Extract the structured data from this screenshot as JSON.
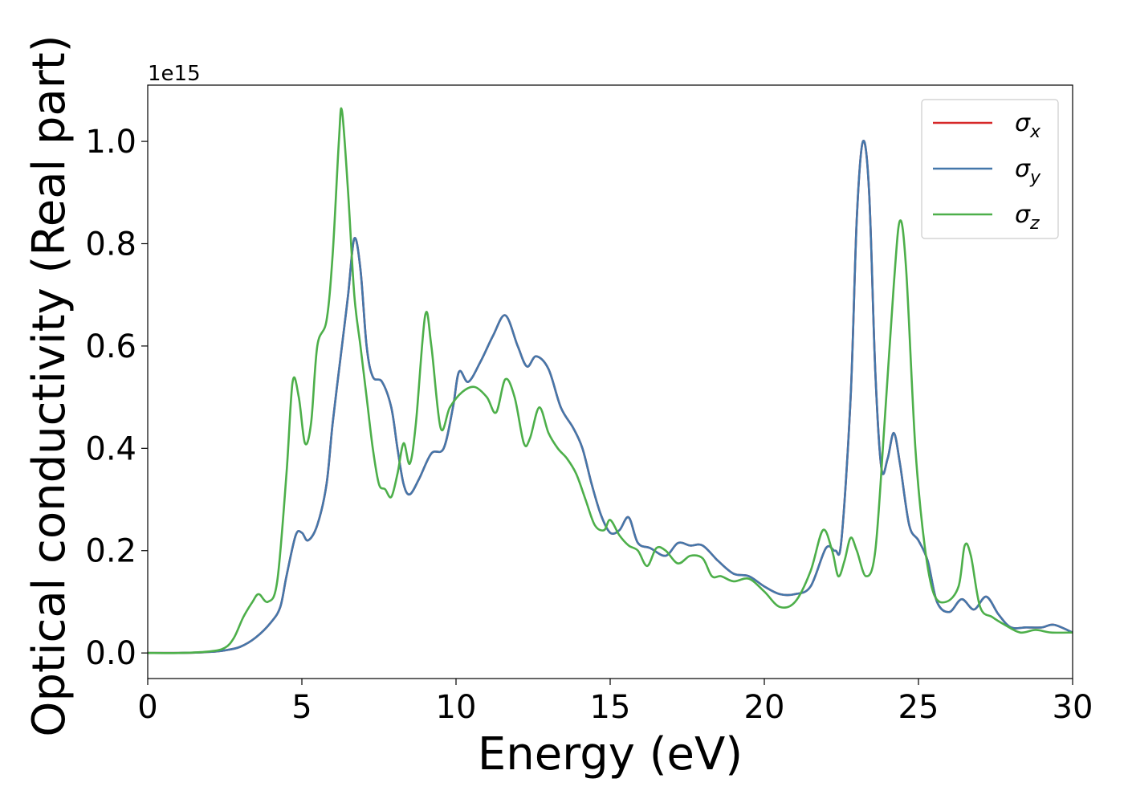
{
  "chart_data": {
    "type": "line",
    "xlabel": "Energy (eV)",
    "ylabel": "Optical conductivity (Real part)",
    "offset_text": "1e15",
    "xlim": [
      0,
      30
    ],
    "ylim": [
      -0.05,
      1.11
    ],
    "xticks": [
      0,
      5,
      10,
      15,
      20,
      25,
      30
    ],
    "xtick_labels": [
      "0",
      "5",
      "10",
      "15",
      "20",
      "25",
      "30"
    ],
    "yticks": [
      0.0,
      0.2,
      0.4,
      0.6,
      0.8,
      1.0
    ],
    "ytick_labels": [
      "0.0",
      "0.2",
      "0.4",
      "0.6",
      "0.8",
      "1.0"
    ],
    "grid": false,
    "legend_position": "top-right",
    "series": [
      {
        "name": "σx",
        "symbol": "σ",
        "subscript": "x",
        "color": "#d62728",
        "points": [
          [
            0,
            0
          ],
          [
            1,
            0
          ],
          [
            2,
            0.002
          ],
          [
            2.5,
            0.005
          ],
          [
            3,
            0.012
          ],
          [
            3.5,
            0.03
          ],
          [
            4,
            0.06
          ],
          [
            4.3,
            0.09
          ],
          [
            4.5,
            0.15
          ],
          [
            4.8,
            0.23
          ],
          [
            5,
            0.235
          ],
          [
            5.2,
            0.22
          ],
          [
            5.5,
            0.25
          ],
          [
            5.8,
            0.33
          ],
          [
            6,
            0.45
          ],
          [
            6.3,
            0.6
          ],
          [
            6.5,
            0.7
          ],
          [
            6.7,
            0.81
          ],
          [
            6.9,
            0.75
          ],
          [
            7.1,
            0.6
          ],
          [
            7.3,
            0.54
          ],
          [
            7.6,
            0.53
          ],
          [
            7.9,
            0.48
          ],
          [
            8.1,
            0.4
          ],
          [
            8.3,
            0.33
          ],
          [
            8.5,
            0.31
          ],
          [
            8.8,
            0.34
          ],
          [
            9.2,
            0.39
          ],
          [
            9.6,
            0.4
          ],
          [
            9.9,
            0.48
          ],
          [
            10.1,
            0.55
          ],
          [
            10.4,
            0.53
          ],
          [
            10.8,
            0.57
          ],
          [
            11.2,
            0.62
          ],
          [
            11.6,
            0.66
          ],
          [
            12,
            0.6
          ],
          [
            12.3,
            0.56
          ],
          [
            12.6,
            0.58
          ],
          [
            13,
            0.555
          ],
          [
            13.4,
            0.48
          ],
          [
            13.8,
            0.44
          ],
          [
            14.1,
            0.4
          ],
          [
            14.4,
            0.33
          ],
          [
            14.7,
            0.27
          ],
          [
            15,
            0.235
          ],
          [
            15.3,
            0.24
          ],
          [
            15.6,
            0.265
          ],
          [
            15.9,
            0.215
          ],
          [
            16.3,
            0.205
          ],
          [
            16.8,
            0.19
          ],
          [
            17.2,
            0.215
          ],
          [
            17.6,
            0.21
          ],
          [
            18,
            0.21
          ],
          [
            18.5,
            0.18
          ],
          [
            19,
            0.155
          ],
          [
            19.5,
            0.15
          ],
          [
            20,
            0.13
          ],
          [
            20.5,
            0.115
          ],
          [
            21,
            0.115
          ],
          [
            21.5,
            0.13
          ],
          [
            22,
            0.205
          ],
          [
            22.3,
            0.2
          ],
          [
            22.5,
            0.22
          ],
          [
            22.8,
            0.5
          ],
          [
            23,
            0.85
          ],
          [
            23.2,
            1.0
          ],
          [
            23.4,
            0.9
          ],
          [
            23.6,
            0.55
          ],
          [
            23.8,
            0.36
          ],
          [
            24,
            0.38
          ],
          [
            24.2,
            0.43
          ],
          [
            24.4,
            0.37
          ],
          [
            24.7,
            0.25
          ],
          [
            25,
            0.22
          ],
          [
            25.3,
            0.18
          ],
          [
            25.6,
            0.1
          ],
          [
            26,
            0.08
          ],
          [
            26.4,
            0.105
          ],
          [
            26.8,
            0.085
          ],
          [
            27.2,
            0.11
          ],
          [
            27.6,
            0.075
          ],
          [
            28,
            0.05
          ],
          [
            28.5,
            0.05
          ],
          [
            29,
            0.05
          ],
          [
            29.4,
            0.055
          ],
          [
            30,
            0.04
          ]
        ]
      },
      {
        "name": "σy",
        "symbol": "σ",
        "subscript": "y",
        "color": "#4477aa",
        "points": [
          [
            0,
            0
          ],
          [
            1,
            0
          ],
          [
            2,
            0.002
          ],
          [
            2.5,
            0.005
          ],
          [
            3,
            0.012
          ],
          [
            3.5,
            0.03
          ],
          [
            4,
            0.06
          ],
          [
            4.3,
            0.09
          ],
          [
            4.5,
            0.15
          ],
          [
            4.8,
            0.23
          ],
          [
            5,
            0.235
          ],
          [
            5.2,
            0.22
          ],
          [
            5.5,
            0.25
          ],
          [
            5.8,
            0.33
          ],
          [
            6,
            0.45
          ],
          [
            6.3,
            0.6
          ],
          [
            6.5,
            0.7
          ],
          [
            6.7,
            0.81
          ],
          [
            6.9,
            0.75
          ],
          [
            7.1,
            0.6
          ],
          [
            7.3,
            0.54
          ],
          [
            7.6,
            0.53
          ],
          [
            7.9,
            0.48
          ],
          [
            8.1,
            0.4
          ],
          [
            8.3,
            0.33
          ],
          [
            8.5,
            0.31
          ],
          [
            8.8,
            0.34
          ],
          [
            9.2,
            0.39
          ],
          [
            9.6,
            0.4
          ],
          [
            9.9,
            0.48
          ],
          [
            10.1,
            0.55
          ],
          [
            10.4,
            0.53
          ],
          [
            10.8,
            0.57
          ],
          [
            11.2,
            0.62
          ],
          [
            11.6,
            0.66
          ],
          [
            12,
            0.6
          ],
          [
            12.3,
            0.56
          ],
          [
            12.6,
            0.58
          ],
          [
            13,
            0.555
          ],
          [
            13.4,
            0.48
          ],
          [
            13.8,
            0.44
          ],
          [
            14.1,
            0.4
          ],
          [
            14.4,
            0.33
          ],
          [
            14.7,
            0.27
          ],
          [
            15,
            0.235
          ],
          [
            15.3,
            0.24
          ],
          [
            15.6,
            0.265
          ],
          [
            15.9,
            0.215
          ],
          [
            16.3,
            0.205
          ],
          [
            16.8,
            0.19
          ],
          [
            17.2,
            0.215
          ],
          [
            17.6,
            0.21
          ],
          [
            18,
            0.21
          ],
          [
            18.5,
            0.18
          ],
          [
            19,
            0.155
          ],
          [
            19.5,
            0.15
          ],
          [
            20,
            0.13
          ],
          [
            20.5,
            0.115
          ],
          [
            21,
            0.115
          ],
          [
            21.5,
            0.13
          ],
          [
            22,
            0.205
          ],
          [
            22.3,
            0.2
          ],
          [
            22.5,
            0.22
          ],
          [
            22.8,
            0.5
          ],
          [
            23,
            0.85
          ],
          [
            23.2,
            1.0
          ],
          [
            23.4,
            0.9
          ],
          [
            23.6,
            0.55
          ],
          [
            23.8,
            0.36
          ],
          [
            24,
            0.38
          ],
          [
            24.2,
            0.43
          ],
          [
            24.4,
            0.37
          ],
          [
            24.7,
            0.25
          ],
          [
            25,
            0.22
          ],
          [
            25.3,
            0.18
          ],
          [
            25.6,
            0.1
          ],
          [
            26,
            0.08
          ],
          [
            26.4,
            0.105
          ],
          [
            26.8,
            0.085
          ],
          [
            27.2,
            0.11
          ],
          [
            27.6,
            0.075
          ],
          [
            28,
            0.05
          ],
          [
            28.5,
            0.05
          ],
          [
            29,
            0.05
          ],
          [
            29.4,
            0.055
          ],
          [
            30,
            0.04
          ]
        ]
      },
      {
        "name": "σz",
        "symbol": "σ",
        "subscript": "z",
        "color": "#4daf4a",
        "points": [
          [
            0,
            0
          ],
          [
            1,
            0
          ],
          [
            2,
            0.003
          ],
          [
            2.5,
            0.01
          ],
          [
            2.8,
            0.03
          ],
          [
            3.1,
            0.07
          ],
          [
            3.4,
            0.1
          ],
          [
            3.6,
            0.115
          ],
          [
            3.9,
            0.1
          ],
          [
            4.2,
            0.14
          ],
          [
            4.5,
            0.35
          ],
          [
            4.7,
            0.53
          ],
          [
            4.9,
            0.5
          ],
          [
            5.1,
            0.41
          ],
          [
            5.3,
            0.45
          ],
          [
            5.5,
            0.6
          ],
          [
            5.8,
            0.65
          ],
          [
            6,
            0.78
          ],
          [
            6.2,
            1.0
          ],
          [
            6.3,
            1.06
          ],
          [
            6.5,
            0.9
          ],
          [
            6.7,
            0.7
          ],
          [
            6.9,
            0.6
          ],
          [
            7.1,
            0.5
          ],
          [
            7.3,
            0.4
          ],
          [
            7.5,
            0.33
          ],
          [
            7.7,
            0.32
          ],
          [
            7.9,
            0.305
          ],
          [
            8.1,
            0.35
          ],
          [
            8.3,
            0.41
          ],
          [
            8.5,
            0.37
          ],
          [
            8.7,
            0.45
          ],
          [
            9,
            0.66
          ],
          [
            9.2,
            0.6
          ],
          [
            9.5,
            0.44
          ],
          [
            9.8,
            0.48
          ],
          [
            10.2,
            0.51
          ],
          [
            10.6,
            0.52
          ],
          [
            11,
            0.5
          ],
          [
            11.3,
            0.47
          ],
          [
            11.6,
            0.535
          ],
          [
            11.9,
            0.5
          ],
          [
            12.2,
            0.41
          ],
          [
            12.4,
            0.42
          ],
          [
            12.7,
            0.48
          ],
          [
            13,
            0.43
          ],
          [
            13.3,
            0.4
          ],
          [
            13.6,
            0.38
          ],
          [
            13.9,
            0.35
          ],
          [
            14.2,
            0.3
          ],
          [
            14.5,
            0.25
          ],
          [
            14.8,
            0.24
          ],
          [
            15,
            0.26
          ],
          [
            15.3,
            0.23
          ],
          [
            15.6,
            0.21
          ],
          [
            15.9,
            0.2
          ],
          [
            16.2,
            0.17
          ],
          [
            16.5,
            0.205
          ],
          [
            16.8,
            0.2
          ],
          [
            17.2,
            0.175
          ],
          [
            17.6,
            0.19
          ],
          [
            18,
            0.185
          ],
          [
            18.3,
            0.15
          ],
          [
            18.6,
            0.15
          ],
          [
            19,
            0.14
          ],
          [
            19.5,
            0.145
          ],
          [
            20,
            0.12
          ],
          [
            20.5,
            0.09
          ],
          [
            21,
            0.1
          ],
          [
            21.5,
            0.16
          ],
          [
            21.9,
            0.24
          ],
          [
            22.2,
            0.2
          ],
          [
            22.4,
            0.15
          ],
          [
            22.6,
            0.18
          ],
          [
            22.8,
            0.225
          ],
          [
            23,
            0.2
          ],
          [
            23.3,
            0.15
          ],
          [
            23.6,
            0.2
          ],
          [
            23.9,
            0.45
          ],
          [
            24.2,
            0.72
          ],
          [
            24.4,
            0.845
          ],
          [
            24.6,
            0.75
          ],
          [
            24.9,
            0.4
          ],
          [
            25.2,
            0.21
          ],
          [
            25.5,
            0.115
          ],
          [
            25.9,
            0.1
          ],
          [
            26.3,
            0.13
          ],
          [
            26.5,
            0.21
          ],
          [
            26.7,
            0.19
          ],
          [
            27,
            0.09
          ],
          [
            27.4,
            0.07
          ],
          [
            27.8,
            0.055
          ],
          [
            28.3,
            0.04
          ],
          [
            28.8,
            0.045
          ],
          [
            29.3,
            0.04
          ],
          [
            30,
            0.04
          ]
        ]
      }
    ]
  }
}
